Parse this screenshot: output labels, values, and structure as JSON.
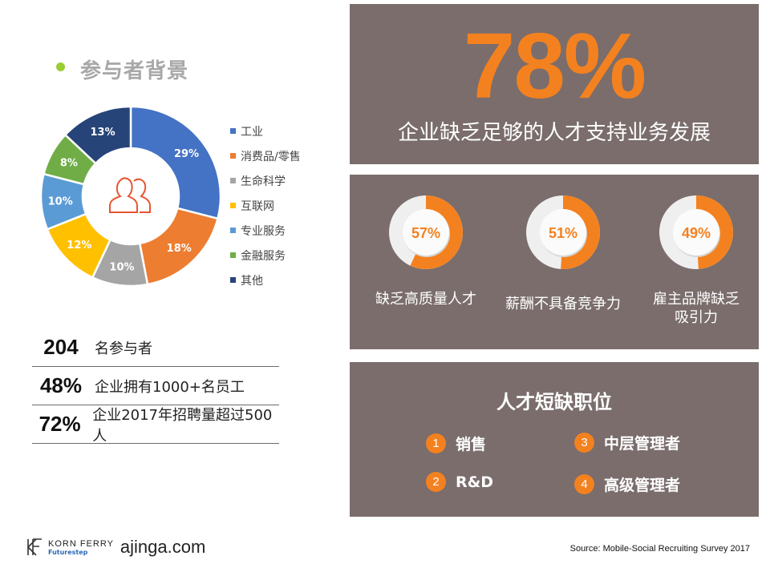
{
  "left_title": "参与者背景",
  "chart_data": {
    "type": "pie",
    "categories": [
      "工业",
      "消费品/零售",
      "生命科学",
      "互联网",
      "专业服务",
      "金融服务",
      "其他"
    ],
    "values": [
      29,
      18,
      10,
      12,
      10,
      8,
      13
    ],
    "labels": [
      "29%",
      "18%",
      "10%",
      "12%",
      "10%",
      "8%",
      "13%"
    ],
    "colors": [
      "#4472C4",
      "#ED7D31",
      "#A5A5A5",
      "#FFC000",
      "#5B9BD5",
      "#70AD47",
      "#264478"
    ],
    "legend_position": "right",
    "center_icon": "people-icon"
  },
  "stats": [
    {
      "num": "204",
      "text": "名参与者"
    },
    {
      "num": "48%",
      "text": "企业拥有1000+名员工"
    },
    {
      "num": "72%",
      "text": "企业2017年招聘量超过500人"
    }
  ],
  "headline": {
    "percent": "78%",
    "text": "企业缺乏足够的人才支持业务发展"
  },
  "rings": [
    {
      "value": 57,
      "label_value": "57%",
      "label": "缺乏高质量人才"
    },
    {
      "value": 51,
      "label_value": "51%",
      "label": "薪酬不具备竞争力"
    },
    {
      "value": 49,
      "label_value": "49%",
      "label": "雇主品牌缺乏\n吸引力"
    }
  ],
  "shortage": {
    "title": "人才短缺职位",
    "roles": [
      {
        "num": "1",
        "text": "销售"
      },
      {
        "num": "2",
        "text": "R&D"
      },
      {
        "num": "3",
        "text": "中层管理者"
      },
      {
        "num": "4",
        "text": "高级管理者"
      }
    ]
  },
  "footer": {
    "brand": "KORN FERRY",
    "brand_sub": "Futurestep",
    "partner": "ajinga.com",
    "source": "Source: Mobile-Social Recruiting Survey 2017"
  },
  "accent_color": "#F4811F",
  "panel_color": "#7a6d6c"
}
